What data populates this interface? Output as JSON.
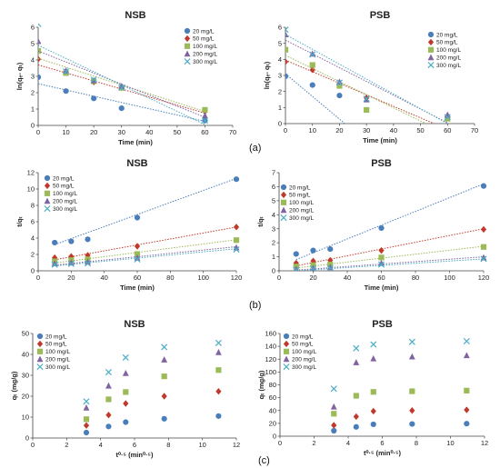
{
  "panel_labels": [
    "(a)",
    "(b)",
    "(c)"
  ],
  "colors": {
    "20 mg/L": "#4a7ebb",
    "50 mg/L": "#c0392b",
    "100 mg/L": "#9bbb59",
    "200 mg/L": "#8064a2",
    "300 mg/L": "#4bacc6"
  },
  "chart_data": [
    {
      "id": "a-nsb",
      "type": "scatter",
      "title": "NSB",
      "xlabel": "Time (min)",
      "ylabel": "ln(qₑ- qₜ)",
      "xlim": [
        0,
        70
      ],
      "ylim": [
        0,
        6
      ],
      "xticks": [
        0,
        10,
        20,
        30,
        40,
        50,
        60,
        70
      ],
      "yticks": [
        0,
        1,
        2,
        3,
        4,
        5,
        6
      ],
      "legend_position": "top-right",
      "series": [
        {
          "name": "20 mg/L",
          "marker": "circle",
          "x": [
            0,
            10,
            20,
            30,
            60
          ],
          "y": [
            2.95,
            2.1,
            1.65,
            1.05,
            0.3
          ],
          "trend": [
            [
              0,
              2.55
            ],
            [
              60,
              0.25
            ]
          ]
        },
        {
          "name": "50 mg/L",
          "marker": "diamond",
          "x": [
            0,
            10,
            20,
            30,
            60
          ],
          "y": [
            4.05,
            3.25,
            2.65,
            2.3,
            0.85
          ],
          "trend": [
            [
              0,
              3.7
            ],
            [
              60,
              0.75
            ]
          ]
        },
        {
          "name": "100 mg/L",
          "marker": "square",
          "x": [
            0,
            10,
            20,
            30,
            60
          ],
          "y": [
            4.55,
            3.2,
            2.7,
            2.3,
            0.95
          ],
          "trend": [
            [
              0,
              4.1
            ],
            [
              60,
              0.85
            ]
          ]
        },
        {
          "name": "200 mg/L",
          "marker": "triangle",
          "x": [
            0,
            10,
            20,
            30,
            60
          ],
          "y": [
            5.15,
            3.35,
            2.75,
            2.4,
            0.6
          ],
          "trend": [
            [
              0,
              4.55
            ],
            [
              60,
              0.5
            ]
          ]
        },
        {
          "name": "300 mg/L",
          "marker": "x",
          "x": [
            0,
            10,
            20,
            30,
            60
          ],
          "y": [
            6.2,
            3.3,
            2.8,
            2.3,
            0.3
          ],
          "trend": [
            [
              0,
              4.9
            ],
            [
              60,
              0.05
            ]
          ]
        }
      ]
    },
    {
      "id": "a-psb",
      "type": "scatter",
      "title": "PSB",
      "xlabel": "Time (min)",
      "ylabel": "ln(qₑ- qₜ)",
      "xlim": [
        0,
        70
      ],
      "ylim": [
        0,
        6
      ],
      "xticks": [
        0,
        10,
        20,
        30,
        40,
        50,
        60,
        70
      ],
      "yticks": [
        0,
        1,
        2,
        3,
        4,
        5,
        6
      ],
      "legend_position": "top-right",
      "series": [
        {
          "name": "20 mg/L",
          "marker": "circle",
          "x": [
            0,
            10,
            20
          ],
          "y": [
            2.95,
            2.4,
            1.75
          ],
          "trend": [
            [
              0,
              3.1
            ],
            [
              22,
              0
            ]
          ]
        },
        {
          "name": "50 mg/L",
          "marker": "diamond",
          "x": [
            0,
            10,
            20,
            30,
            60
          ],
          "y": [
            3.85,
            3.35,
            2.45,
            1.6,
            0.45
          ],
          "trend": [
            [
              0,
              3.95
            ],
            [
              55,
              0
            ]
          ]
        },
        {
          "name": "100 mg/L",
          "marker": "square",
          "x": [
            0,
            10,
            20,
            30,
            60
          ],
          "y": [
            4.6,
            3.65,
            2.35,
            0.85,
            0.3
          ],
          "trend": [
            [
              0,
              4.25
            ],
            [
              52,
              0
            ]
          ]
        },
        {
          "name": "200 mg/L",
          "marker": "triangle",
          "x": [
            0,
            10,
            20,
            30,
            60
          ],
          "y": [
            5.55,
            4.35,
            2.6,
            1.5,
            0.55
          ],
          "trend": [
            [
              0,
              5.2
            ],
            [
              60,
              0.05
            ]
          ]
        },
        {
          "name": "300 mg/L",
          "marker": "x",
          "x": [
            0,
            10,
            20,
            30,
            60
          ],
          "y": [
            5.85,
            4.3,
            2.55,
            1.55,
            0.4
          ],
          "trend": [
            [
              0,
              5.55
            ],
            [
              60,
              0
            ]
          ]
        }
      ]
    },
    {
      "id": "b-nsb",
      "type": "scatter",
      "title": "NSB",
      "xlabel": "Time (min)",
      "ylabel": "t/qₜ",
      "xlim": [
        0,
        120
      ],
      "ylim": [
        0,
        12
      ],
      "xticks": [
        0,
        20,
        40,
        60,
        80,
        100,
        120
      ],
      "yticks": [
        0,
        2,
        4,
        6,
        8,
        10,
        12
      ],
      "legend_position": "top-left",
      "series": [
        {
          "name": "20 mg/L",
          "marker": "circle",
          "x": [
            10,
            20,
            30,
            60,
            120
          ],
          "y": [
            3.45,
            3.6,
            3.85,
            6.5,
            11.2
          ],
          "trend": [
            [
              10,
              3.2
            ],
            [
              120,
              11.3
            ]
          ]
        },
        {
          "name": "50 mg/L",
          "marker": "diamond",
          "x": [
            10,
            20,
            30,
            60,
            120
          ],
          "y": [
            1.6,
            1.75,
            1.9,
            3.0,
            5.35
          ],
          "trend": [
            [
              10,
              1.35
            ],
            [
              120,
              5.35
            ]
          ]
        },
        {
          "name": "100 mg/L",
          "marker": "square",
          "x": [
            10,
            20,
            30,
            60,
            120
          ],
          "y": [
            1.15,
            1.3,
            1.4,
            2.05,
            3.75
          ],
          "trend": [
            [
              10,
              0.95
            ],
            [
              120,
              3.8
            ]
          ]
        },
        {
          "name": "200 mg/L",
          "marker": "triangle",
          "x": [
            10,
            20,
            30,
            60,
            120
          ],
          "y": [
            0.9,
            1.0,
            1.1,
            1.6,
            2.85
          ],
          "trend": [
            [
              10,
              0.7
            ],
            [
              120,
              2.95
            ]
          ]
        },
        {
          "name": "300 mg/L",
          "marker": "x",
          "x": [
            10,
            20,
            30,
            60,
            120
          ],
          "y": [
            0.75,
            0.85,
            0.9,
            1.4,
            2.6
          ],
          "trend": [
            [
              10,
              0.6
            ],
            [
              120,
              2.7
            ]
          ]
        }
      ]
    },
    {
      "id": "b-psb",
      "type": "scatter",
      "title": "PSB",
      "xlabel": "Time (min)",
      "ylabel": "t/qₜ",
      "xlim": [
        0,
        120
      ],
      "ylim": [
        0,
        7
      ],
      "xticks": [
        0,
        20,
        40,
        60,
        80,
        100,
        120
      ],
      "yticks": [
        0,
        1,
        2,
        3,
        4,
        5,
        6,
        7
      ],
      "legend_position": "top-left",
      "series": [
        {
          "name": "20 mg/L",
          "marker": "circle",
          "x": [
            10,
            20,
            30,
            60,
            120
          ],
          "y": [
            1.2,
            1.45,
            1.55,
            3.05,
            6.05
          ],
          "trend": [
            [
              10,
              0.8
            ],
            [
              120,
              6.2
            ]
          ]
        },
        {
          "name": "50 mg/L",
          "marker": "diamond",
          "x": [
            10,
            20,
            30,
            60,
            120
          ],
          "y": [
            0.55,
            0.7,
            0.75,
            1.45,
            2.95
          ],
          "trend": [
            [
              10,
              0.35
            ],
            [
              120,
              3.0
            ]
          ]
        },
        {
          "name": "100 mg/L",
          "marker": "square",
          "x": [
            10,
            20,
            30,
            60,
            120
          ],
          "y": [
            0.3,
            0.4,
            0.45,
            0.95,
            1.7
          ],
          "trend": [
            [
              10,
              0.2
            ],
            [
              120,
              1.75
            ]
          ]
        },
        {
          "name": "200 mg/L",
          "marker": "triangle",
          "x": [
            10,
            20,
            30,
            60,
            120
          ],
          "y": [
            0.12,
            0.18,
            0.25,
            0.55,
            0.95
          ],
          "trend": [
            [
              10,
              0.05
            ],
            [
              120,
              1.0
            ]
          ]
        },
        {
          "name": "300 mg/L",
          "marker": "x",
          "x": [
            10,
            20,
            30,
            60,
            120
          ],
          "y": [
            0.08,
            0.15,
            0.2,
            0.45,
            0.85
          ],
          "trend": [
            [
              10,
              0.0
            ],
            [
              120,
              0.85
            ]
          ]
        }
      ]
    },
    {
      "id": "c-nsb",
      "type": "scatter",
      "title": "NSB",
      "xlabel": "t⁰·⁵ (min⁰·⁵)",
      "ylabel": "qₜ (mg/g)",
      "xlim": [
        0,
        12
      ],
      "ylim": [
        0,
        50
      ],
      "xticks": [
        0,
        2,
        4,
        6,
        8,
        10,
        12
      ],
      "yticks": [
        0,
        10,
        20,
        30,
        40,
        50
      ],
      "legend_position": "top-left",
      "series": [
        {
          "name": "20 mg/L",
          "marker": "circle",
          "x": [
            3.16,
            4.47,
            5.48,
            7.75,
            10.95
          ],
          "y": [
            2.6,
            5.5,
            7.6,
            9.2,
            10.5
          ]
        },
        {
          "name": "50 mg/L",
          "marker": "diamond",
          "x": [
            3.16,
            4.47,
            5.48,
            7.75,
            10.95
          ],
          "y": [
            6.0,
            11.0,
            16.5,
            20.0,
            22.3
          ]
        },
        {
          "name": "100 mg/L",
          "marker": "square",
          "x": [
            3.16,
            4.47,
            5.48,
            7.75,
            10.95
          ],
          "y": [
            9.0,
            18.5,
            22.0,
            29.5,
            32.5
          ]
        },
        {
          "name": "200 mg/L",
          "marker": "triangle",
          "x": [
            3.16,
            4.47,
            5.48,
            7.75,
            10.95
          ],
          "y": [
            14.5,
            25.0,
            31.0,
            37.5,
            41.0
          ]
        },
        {
          "name": "300 mg/L",
          "marker": "x",
          "x": [
            3.16,
            4.47,
            5.48,
            7.75,
            10.95
          ],
          "y": [
            17.5,
            31.5,
            38.5,
            43.5,
            45.5
          ]
        }
      ]
    },
    {
      "id": "c-psb",
      "type": "scatter",
      "title": "PSB",
      "xlabel": "t⁰·⁵ (min⁰·⁵)",
      "ylabel": "qₜ (mg/g)",
      "xlim": [
        0,
        12
      ],
      "ylim": [
        0,
        160
      ],
      "xticks": [
        0,
        2,
        4,
        6,
        8,
        10,
        12
      ],
      "yticks": [
        0,
        20,
        40,
        60,
        80,
        100,
        120,
        140,
        160
      ],
      "legend_position": "top-left",
      "series": [
        {
          "name": "20 mg/L",
          "marker": "circle",
          "x": [
            3.16,
            4.47,
            5.48,
            7.75,
            10.95
          ],
          "y": [
            8.5,
            14.5,
            18.5,
            19.0,
            19.5
          ]
        },
        {
          "name": "50 mg/L",
          "marker": "diamond",
          "x": [
            3.16,
            4.47,
            5.48,
            7.75,
            10.95
          ],
          "y": [
            17.0,
            30.5,
            39.0,
            40.0,
            41.0
          ]
        },
        {
          "name": "100 mg/L",
          "marker": "square",
          "x": [
            3.16,
            4.47,
            5.48,
            7.75,
            10.95
          ],
          "y": [
            35.0,
            63.0,
            69.0,
            70.0,
            71.0
          ]
        },
        {
          "name": "200 mg/L",
          "marker": "triangle",
          "x": [
            3.16,
            4.47,
            5.48,
            7.75,
            10.95
          ],
          "y": [
            46.0,
            115.0,
            121.0,
            124.0,
            126.0
          ]
        },
        {
          "name": "300 mg/L",
          "marker": "x",
          "x": [
            3.16,
            4.47,
            5.48,
            7.75,
            10.95
          ],
          "y": [
            74.0,
            137.0,
            143.0,
            147.0,
            148.0
          ]
        }
      ]
    }
  ]
}
